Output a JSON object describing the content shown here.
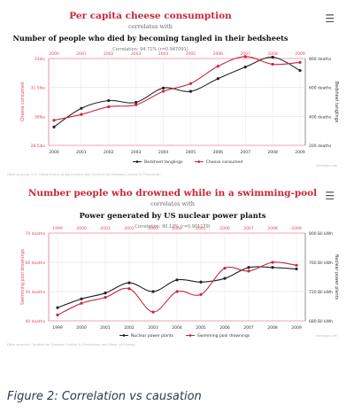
{
  "caption": "Figure 2: Correlation vs causation",
  "icons": {
    "menu": "hamburger-menu-icon"
  },
  "colors": {
    "red": "#c8283a",
    "black": "#222222",
    "grid": "#dcdcdc",
    "axis_red": "#e14b5a"
  },
  "chart_data": [
    {
      "type": "line",
      "title": "Per capita cheese consumption",
      "connector": "correlates with",
      "subtitle": "Number of people who died by becoming tangled in their bedsheets",
      "correlation": "Correlation: 94.71% (r=0.947091)",
      "x": [
        "2000",
        "2001",
        "2002",
        "2003",
        "2004",
        "2005",
        "2006",
        "2007",
        "2008",
        "2009"
      ],
      "left_axis": {
        "label": "Cheese consumed",
        "ticks": [
          "33lbs",
          "31.5lbs",
          "30lbs",
          "28.5lbs"
        ],
        "ylim": [
          28.5,
          33
        ]
      },
      "right_axis": {
        "label": "Bedsheet tanglings",
        "ticks": [
          "800 deaths",
          "600 deaths",
          "400 deaths",
          "200 deaths"
        ],
        "ylim": [
          200,
          800
        ]
      },
      "series": [
        {
          "name": "Bedsheet tanglings",
          "axis": "right",
          "values": [
            327,
            456,
            509,
            497,
            596,
            573,
            661,
            741,
            809,
            717
          ]
        },
        {
          "name": "Cheese consumed",
          "axis": "left",
          "values": [
            29.8,
            30.1,
            30.5,
            30.6,
            31.3,
            31.7,
            32.6,
            33.1,
            32.7,
            32.8
          ]
        }
      ],
      "source": "Data sources: U.S. Department of Agriculture and Centers for Disease Control & Prevention",
      "credit": "tylervigen.com"
    },
    {
      "type": "line",
      "title": "Number people who drowned while in a swimming-pool",
      "connector": "correlates with",
      "subtitle": "Power generated by US nuclear power plants",
      "correlation": "Correlation: 90.12% (r=0.901179)",
      "x": [
        "1999",
        "2000",
        "2001",
        "2002",
        "2003",
        "2004",
        "2005",
        "2006",
        "2007",
        "2008",
        "2009"
      ],
      "left_axis": {
        "label": "Swimming pool drownings",
        "ticks": [
          "70 deaths",
          "60 deaths",
          "50 deaths",
          "40 deaths"
        ],
        "ylim": [
          40,
          70
        ]
      },
      "right_axis": {
        "label": "Nuclear power plants",
        "ticks": [
          "800 Bil kWh",
          "760 Bil kWh",
          "720 Bil kWh",
          "680 Bil kWh"
        ],
        "ylim": [
          680,
          800
        ]
      },
      "series": [
        {
          "name": "Nuclear power plants",
          "axis": "right",
          "values": [
            698,
            710,
            718,
            732,
            720,
            736,
            733,
            738,
            753,
            753,
            751
          ]
        },
        {
          "name": "Swimming pool drownings",
          "axis": "left",
          "values": [
            42,
            46,
            48,
            51,
            43,
            50,
            49,
            58,
            57,
            60,
            59
          ]
        }
      ],
      "source": "Data sources: Centers for Disease Control & Prevention and Dept. of Energy",
      "credit": "tylervigen.com"
    }
  ]
}
